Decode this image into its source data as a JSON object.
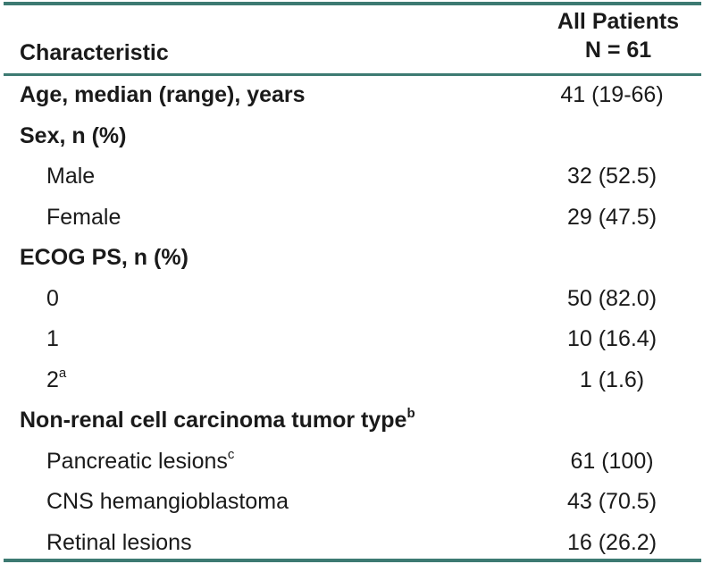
{
  "table": {
    "header": {
      "characteristic": "Characteristic",
      "all_patients_line1": "All Patients",
      "all_patients_line2": "N = 61"
    },
    "rows": [
      {
        "label": "Age, median (range), years",
        "sup": "",
        "value": "41 (19-66)",
        "bold": true,
        "sub": false
      },
      {
        "label": "Sex, n (%)",
        "sup": "",
        "value": "",
        "bold": true,
        "sub": false
      },
      {
        "label": "Male",
        "sup": "",
        "value": "32 (52.5)",
        "bold": false,
        "sub": true
      },
      {
        "label": "Female",
        "sup": "",
        "value": "29 (47.5)",
        "bold": false,
        "sub": true
      },
      {
        "label": "ECOG PS, n (%)",
        "sup": "",
        "value": "",
        "bold": true,
        "sub": false
      },
      {
        "label": "0",
        "sup": "",
        "value": "50 (82.0)",
        "bold": false,
        "sub": true
      },
      {
        "label": "1",
        "sup": "",
        "value": "10 (16.4)",
        "bold": false,
        "sub": true
      },
      {
        "label": "2",
        "sup": "a",
        "value": "1 (1.6)",
        "bold": false,
        "sub": true
      },
      {
        "label": "Non-renal cell carcinoma tumor type",
        "sup": "b",
        "value": "",
        "bold": true,
        "sub": false
      },
      {
        "label": "Pancreatic lesions",
        "sup": "c",
        "value": "61 (100)",
        "bold": false,
        "sub": true
      },
      {
        "label": "CNS hemangioblastoma",
        "sup": "",
        "value": "43 (70.5)",
        "bold": false,
        "sub": true
      },
      {
        "label": "Retinal lesions",
        "sup": "",
        "value": "16 (26.2)",
        "bold": false,
        "sub": true
      }
    ]
  }
}
